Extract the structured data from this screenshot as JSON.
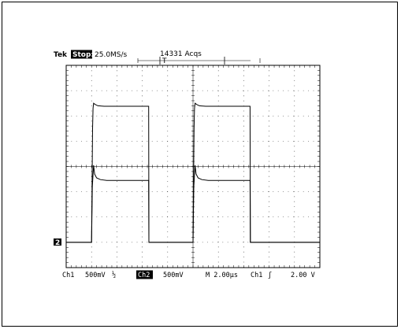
{
  "header": {
    "brand": "Tek",
    "state": "Stop:",
    "sample_rate": "25.0MS/s",
    "acquisitions": "14331 Acqs",
    "trigger_bar_label": "T"
  },
  "footer": {
    "ch1_label": "Ch1",
    "ch1_scale": "500mV",
    "bw_symbol": "½",
    "ch2_label": "Ch2",
    "ch2_scale": "500mV",
    "timebase": "M 2.00µs",
    "trig_source": "Ch1",
    "trig_slope": "ʃ",
    "trig_level": "2.00 V"
  },
  "ground_marker": "2",
  "colors": {
    "trace": "#000000",
    "grid": "#000000",
    "background": "#ffffff"
  },
  "chart_data": {
    "type": "line",
    "title": "",
    "xlabel": "",
    "ylabel": "",
    "x_unit": "µs",
    "xlim": [
      0,
      20
    ],
    "ylim": [
      -4,
      4
    ],
    "grid": true,
    "series": [
      {
        "name": "Ch1",
        "x": [
          0,
          2.0,
          2.08,
          2.12,
          2.16,
          2.3,
          2.5,
          3.0,
          4.0,
          5.0,
          6.0,
          6.5,
          6.52,
          10.0,
          10.08,
          10.12,
          10.16,
          10.3,
          10.5,
          11.0,
          12.0,
          13.0,
          14.0,
          14.5,
          14.52,
          20.0
        ],
        "y": [
          -3.0,
          -3.0,
          1.5,
          2.3,
          2.5,
          2.45,
          2.4,
          2.38,
          2.38,
          2.38,
          2.38,
          2.38,
          -3.0,
          -3.0,
          1.5,
          2.3,
          2.5,
          2.45,
          2.4,
          2.38,
          2.38,
          2.38,
          2.38,
          2.38,
          -3.0,
          -3.0
        ]
      },
      {
        "name": "Ch2",
        "x": [
          0,
          2.0,
          2.06,
          2.16,
          2.24,
          2.4,
          2.7,
          3.2,
          4.0,
          5.0,
          6.0,
          6.5,
          6.52,
          10.0,
          10.06,
          10.16,
          10.24,
          10.4,
          10.7,
          11.2,
          12.0,
          13.0,
          14.0,
          14.5,
          14.52,
          20.0
        ],
        "y": [
          -3.0,
          -3.0,
          -0.8,
          0.05,
          -0.3,
          -0.45,
          -0.52,
          -0.55,
          -0.55,
          -0.55,
          -0.55,
          -0.55,
          -3.0,
          -3.0,
          -0.8,
          0.05,
          -0.3,
          -0.45,
          -0.52,
          -0.55,
          -0.55,
          -0.55,
          -0.55,
          -0.55,
          -3.0,
          -3.0
        ]
      }
    ]
  }
}
